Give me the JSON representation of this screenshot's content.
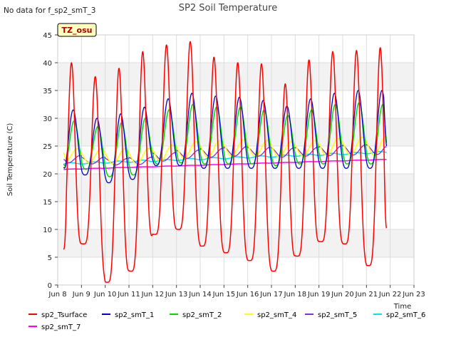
{
  "chart_data": {
    "type": "line",
    "title": "SP2 Soil Temperature",
    "no_data_note": "No data for f_sp2_smT_3",
    "badge": "TZ_osu",
    "xlabel": "Time",
    "ylabel": "Soil Temperature (C)",
    "xlim": [
      8,
      23
    ],
    "ylim": [
      0,
      45
    ],
    "x_ticks": [
      8,
      9,
      10,
      11,
      12,
      13,
      14,
      15,
      16,
      17,
      18,
      19,
      20,
      21,
      22,
      23
    ],
    "x_tick_labels": [
      "Jun 8",
      "Jun 9",
      "Jun 10",
      "Jun 11",
      "Jun 12",
      "Jun 13",
      "Jun 14",
      "Jun 15",
      "Jun 16",
      "Jun 17",
      "Jun 18",
      "Jun 19",
      "Jun 20",
      "Jun 21",
      "Jun 22",
      "Jun 23"
    ],
    "y_ticks": [
      0,
      5,
      10,
      15,
      20,
      25,
      30,
      35,
      40,
      45
    ],
    "bands": [
      [
        5,
        10
      ],
      [
        15,
        20
      ],
      [
        25,
        30
      ],
      [
        35,
        40
      ]
    ],
    "days": [
      8,
      9,
      10,
      11,
      12,
      13,
      14,
      15,
      16,
      17,
      18,
      19,
      20,
      21
    ],
    "series": [
      {
        "name": "sp2_Tsurface",
        "color": "#ff0000",
        "width": 1.5,
        "daily_max": [
          40.0,
          37.5,
          39.0,
          42.0,
          43.2,
          43.8,
          41.0,
          40.0,
          39.8,
          36.2,
          40.5,
          42.0,
          42.2,
          42.7
        ],
        "daily_min": [
          4.7,
          7.4,
          0.5,
          2.5,
          9.1,
          10.0,
          7.0,
          5.8,
          4.4,
          2.5,
          5.2,
          7.8,
          7.4,
          3.5
        ],
        "start_value": 6.4,
        "end_value": 10.2,
        "x_start": 8.25,
        "x_end": 21.85,
        "peak_frac": 0.58,
        "sharpness": 2.2
      },
      {
        "name": "sp2_smT_1",
        "color": "#0000cc",
        "width": 1.3,
        "daily_max": [
          31.5,
          30.0,
          30.8,
          32.0,
          33.5,
          34.5,
          34.0,
          33.8,
          33.2,
          32.2,
          33.5,
          34.5,
          35.0,
          35.0
        ],
        "daily_min": [
          19.8,
          19.8,
          18.4,
          19.0,
          21.5,
          21.5,
          21.0,
          21.0,
          21.0,
          21.0,
          21.0,
          21.0,
          21.0,
          21.0
        ],
        "start_value": 21.2,
        "end_value": 24.8,
        "x_start": 8.25,
        "x_end": 21.85,
        "peak_frac": 0.65,
        "sharpness": 1.5
      },
      {
        "name": "sp2_smT_2",
        "color": "#00dd00",
        "width": 1.5,
        "daily_max": [
          29.5,
          28.5,
          29.2,
          30.0,
          31.5,
          32.5,
          32.0,
          32.0,
          31.5,
          30.5,
          31.5,
          32.5,
          32.8,
          32.5
        ],
        "daily_min": [
          20.5,
          20.8,
          19.5,
          19.8,
          21.8,
          22.0,
          21.8,
          21.8,
          21.8,
          21.5,
          21.8,
          21.8,
          21.8,
          21.8
        ],
        "start_value": 21.8,
        "end_value": 25.4,
        "x_start": 8.25,
        "x_end": 21.85,
        "peak_frac": 0.69,
        "sharpness": 1.4
      },
      {
        "name": "sp2_smT_4",
        "color": "#ffff00",
        "width": 1.5,
        "daily_max": [
          24.5,
          24.5,
          24.5,
          24.6,
          25.2,
          25.8,
          26.0,
          26.2,
          26.0,
          25.8,
          26.0,
          26.4,
          26.6,
          26.8
        ],
        "daily_min": [
          22.2,
          22.0,
          21.8,
          21.8,
          22.3,
          22.8,
          23.0,
          23.2,
          23.2,
          23.0,
          23.2,
          23.3,
          23.4,
          23.4
        ],
        "start_value": 23.8,
        "end_value": 26.5,
        "x_start": 8.25,
        "x_end": 21.85,
        "peak_frac": 0.82,
        "sharpness": 1.0
      },
      {
        "name": "sp2_smT_5",
        "color": "#8a2be2",
        "width": 1.3,
        "daily_max": [
          23.3,
          23.0,
          22.8,
          23.0,
          23.8,
          24.3,
          24.6,
          24.9,
          24.8,
          24.7,
          24.8,
          25.0,
          25.2,
          25.3
        ],
        "daily_min": [
          22.0,
          21.8,
          21.6,
          21.7,
          22.3,
          22.8,
          23.0,
          23.2,
          23.2,
          23.0,
          23.2,
          23.3,
          23.4,
          23.5
        ],
        "start_value": 22.6,
        "end_value": 24.8,
        "x_start": 8.25,
        "x_end": 21.85,
        "peak_frac": 0.95,
        "sharpness": 1.0
      },
      {
        "name": "sp2_smT_6",
        "color": "#00e5ee",
        "width": 1.5,
        "start_value": 21.8,
        "end_value": 23.9,
        "x_start": 8.25,
        "x_end": 21.85,
        "amplitude": 0.15
      },
      {
        "name": "sp2_smT_7",
        "color": "#ff00ff",
        "width": 1.5,
        "start_value": 20.8,
        "end_value": 22.6,
        "x_start": 8.25,
        "x_end": 21.85,
        "amplitude": 0.03
      }
    ]
  }
}
